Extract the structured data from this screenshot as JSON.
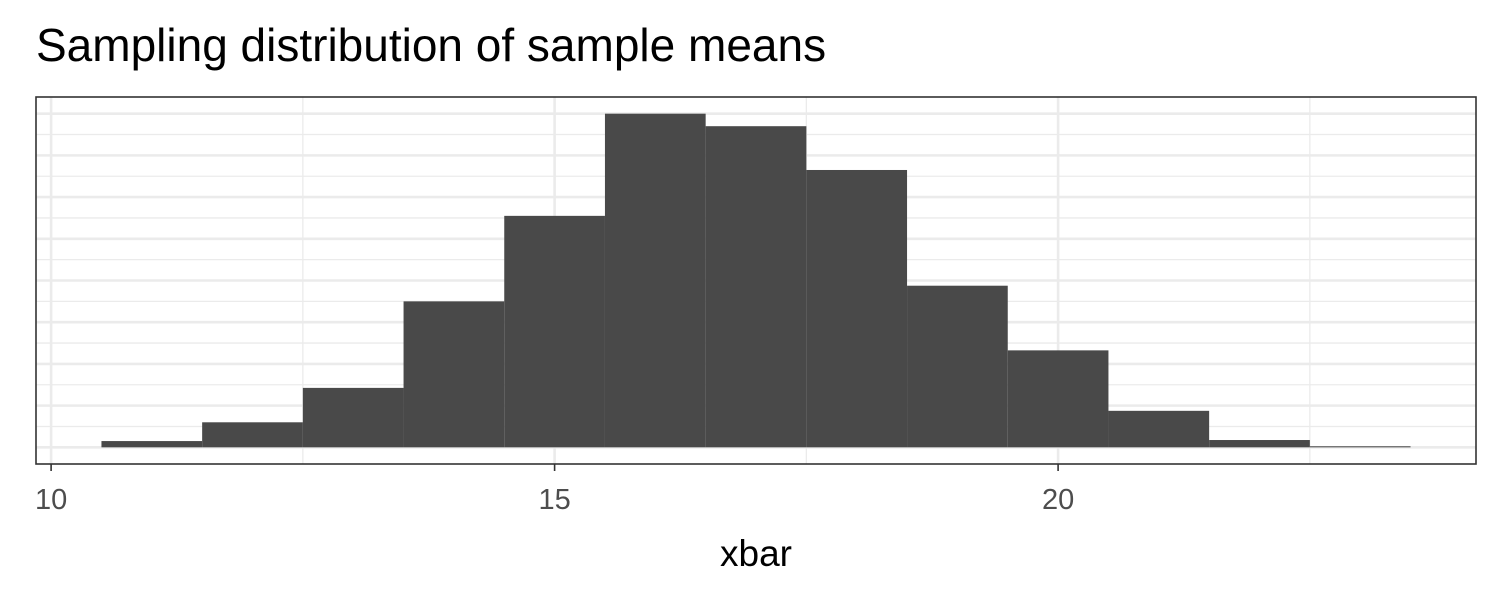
{
  "chart_data": {
    "type": "histogram",
    "title": "Sampling distribution of sample means",
    "xlabel": "xbar",
    "ylabel": "",
    "bins": [
      {
        "x0": 10.5,
        "x1": 11.5,
        "count": 6
      },
      {
        "x0": 11.5,
        "x1": 12.5,
        "count": 24
      },
      {
        "x0": 12.5,
        "x1": 13.5,
        "count": 57
      },
      {
        "x0": 13.5,
        "x1": 14.5,
        "count": 140
      },
      {
        "x0": 14.5,
        "x1": 15.5,
        "count": 222
      },
      {
        "x0": 15.5,
        "x1": 16.5,
        "count": 320
      },
      {
        "x0": 16.5,
        "x1": 17.5,
        "count": 308
      },
      {
        "x0": 17.5,
        "x1": 18.5,
        "count": 266
      },
      {
        "x0": 18.5,
        "x1": 19.5,
        "count": 155
      },
      {
        "x0": 19.5,
        "x1": 20.5,
        "count": 93
      },
      {
        "x0": 20.5,
        "x1": 21.5,
        "count": 35
      },
      {
        "x0": 21.5,
        "x1": 22.5,
        "count": 7
      },
      {
        "x0": 22.5,
        "x1": 23.5,
        "count": 1
      }
    ],
    "x_ticks": [
      10,
      15,
      20
    ],
    "xlim": [
      9.85,
      24.15
    ],
    "ylim": [
      -16,
      336
    ],
    "y_gridlines": [
      0,
      40,
      80,
      120,
      160,
      200,
      240,
      280,
      320
    ],
    "y_tick_labels_shown": false,
    "x_minor_gridlines": [
      12.5,
      17.5,
      22.5
    ],
    "bar_color": "#494949",
    "grid": true,
    "grid_color": "#ebebeb",
    "panel_border_color": "#333333"
  }
}
